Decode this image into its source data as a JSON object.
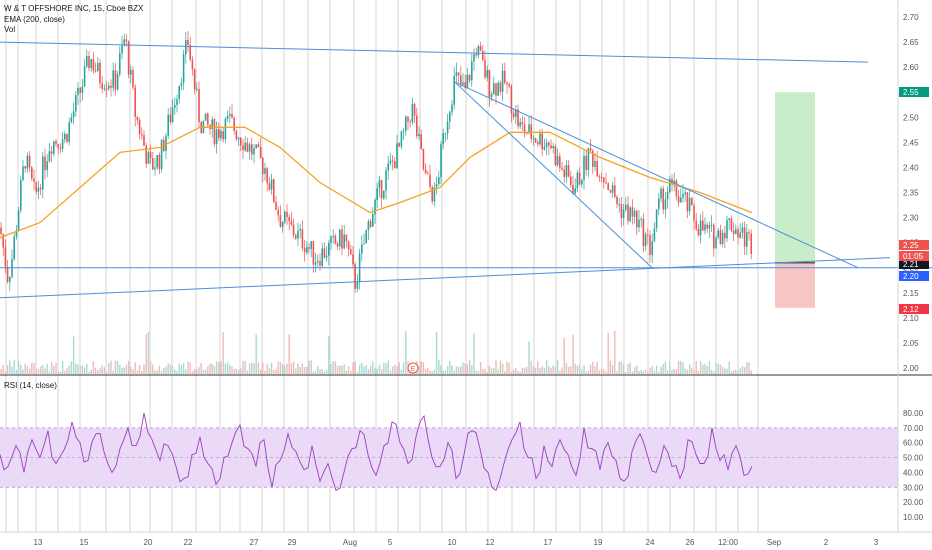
{
  "header": {
    "symbol_line": "W & T OFFSHORE INC, 15, Cboe BZX",
    "indicator_1": "EMA (200, close)",
    "indicator_2": "Vol",
    "rsi_label": "RSI (14, close)",
    "marker_label": "E"
  },
  "price_badges": [
    {
      "text": "2.55",
      "color": "#089981"
    },
    {
      "text": "2.25",
      "color": "#ef5350"
    },
    {
      "text": "2.21",
      "color": "#131722"
    },
    {
      "text": "01:05",
      "color": "#ef5350"
    },
    {
      "text": "2.20",
      "color": "#2962ff"
    },
    {
      "text": "2.12",
      "color": "#f23645"
    }
  ],
  "colors": {
    "up_candle": "#26a69a",
    "down_candle": "#ef5350",
    "ema_line": "#f7a325",
    "trend_line": "#4a90d9",
    "rsi_line": "#9b3dbf",
    "rsi_band": "#ead9f7",
    "target_zone": "#c9edc8",
    "stop_zone": "#f8c5c5"
  },
  "chart_data": [
    {
      "type": "line",
      "panel": "price",
      "series_kind": "candlestick_15min",
      "y_axis": {
        "ticks": [
          "2.70",
          "2.65",
          "2.60",
          "2.55",
          "2.50",
          "2.45",
          "2.40",
          "2.35",
          "2.30",
          "2.25",
          "2.20",
          "2.15",
          "2.10",
          "2.05",
          "2.00"
        ],
        "range": [
          1.97,
          2.72
        ]
      },
      "x_axis": {
        "ticks": [
          "13",
          "15",
          "20",
          "22",
          "27",
          "29",
          "Aug",
          "5",
          "10",
          "12",
          "17",
          "19",
          "24",
          "26",
          "12:00",
          "Sep",
          "2",
          "3"
        ]
      },
      "price_path": [
        {
          "x": 0,
          "y": 2.28
        },
        {
          "x": 8,
          "y": 2.18
        },
        {
          "x": 12,
          "y": 2.22
        },
        {
          "x": 25,
          "y": 2.42
        },
        {
          "x": 35,
          "y": 2.34
        },
        {
          "x": 50,
          "y": 2.45
        },
        {
          "x": 65,
          "y": 2.46
        },
        {
          "x": 80,
          "y": 2.55
        },
        {
          "x": 90,
          "y": 2.62
        },
        {
          "x": 100,
          "y": 2.58
        },
        {
          "x": 115,
          "y": 2.57
        },
        {
          "x": 125,
          "y": 2.66
        },
        {
          "x": 135,
          "y": 2.51
        },
        {
          "x": 150,
          "y": 2.4
        },
        {
          "x": 160,
          "y": 2.42
        },
        {
          "x": 170,
          "y": 2.5
        },
        {
          "x": 180,
          "y": 2.58
        },
        {
          "x": 188,
          "y": 2.65
        },
        {
          "x": 200,
          "y": 2.49
        },
        {
          "x": 215,
          "y": 2.47
        },
        {
          "x": 230,
          "y": 2.49
        },
        {
          "x": 245,
          "y": 2.45
        },
        {
          "x": 265,
          "y": 2.4
        },
        {
          "x": 280,
          "y": 2.3
        },
        {
          "x": 295,
          "y": 2.27
        },
        {
          "x": 305,
          "y": 2.25
        },
        {
          "x": 315,
          "y": 2.22
        },
        {
          "x": 330,
          "y": 2.24
        },
        {
          "x": 345,
          "y": 2.26
        },
        {
          "x": 355,
          "y": 2.17
        },
        {
          "x": 370,
          "y": 2.3
        },
        {
          "x": 385,
          "y": 2.38
        },
        {
          "x": 400,
          "y": 2.44
        },
        {
          "x": 412,
          "y": 2.52
        },
        {
          "x": 425,
          "y": 2.38
        },
        {
          "x": 435,
          "y": 2.34
        },
        {
          "x": 445,
          "y": 2.48
        },
        {
          "x": 455,
          "y": 2.58
        },
        {
          "x": 465,
          "y": 2.55
        },
        {
          "x": 476,
          "y": 2.64
        },
        {
          "x": 490,
          "y": 2.56
        },
        {
          "x": 505,
          "y": 2.57
        },
        {
          "x": 520,
          "y": 2.48
        },
        {
          "x": 535,
          "y": 2.46
        },
        {
          "x": 550,
          "y": 2.45
        },
        {
          "x": 560,
          "y": 2.4
        },
        {
          "x": 575,
          "y": 2.36
        },
        {
          "x": 590,
          "y": 2.43
        },
        {
          "x": 605,
          "y": 2.38
        },
        {
          "x": 620,
          "y": 2.32
        },
        {
          "x": 635,
          "y": 2.3
        },
        {
          "x": 650,
          "y": 2.24
        },
        {
          "x": 660,
          "y": 2.33
        },
        {
          "x": 670,
          "y": 2.36
        },
        {
          "x": 685,
          "y": 2.33
        },
        {
          "x": 700,
          "y": 2.28
        },
        {
          "x": 715,
          "y": 2.26
        },
        {
          "x": 730,
          "y": 2.29
        },
        {
          "x": 745,
          "y": 2.26
        },
        {
          "x": 752,
          "y": 2.25
        }
      ],
      "ema_200_path": [
        {
          "x": 0,
          "y": 2.26
        },
        {
          "x": 40,
          "y": 2.29
        },
        {
          "x": 80,
          "y": 2.36
        },
        {
          "x": 120,
          "y": 2.43
        },
        {
          "x": 160,
          "y": 2.44
        },
        {
          "x": 200,
          "y": 2.48
        },
        {
          "x": 245,
          "y": 2.48
        },
        {
          "x": 280,
          "y": 2.44
        },
        {
          "x": 320,
          "y": 2.37
        },
        {
          "x": 370,
          "y": 2.31
        },
        {
          "x": 400,
          "y": 2.33
        },
        {
          "x": 440,
          "y": 2.36
        },
        {
          "x": 470,
          "y": 2.42
        },
        {
          "x": 510,
          "y": 2.47
        },
        {
          "x": 550,
          "y": 2.47
        },
        {
          "x": 600,
          "y": 2.42
        },
        {
          "x": 650,
          "y": 2.38
        },
        {
          "x": 700,
          "y": 2.35
        },
        {
          "x": 752,
          "y": 2.31
        }
      ],
      "trend_lines": [
        {
          "from": [
            0,
            2.65
          ],
          "to": [
            868,
            2.61
          ]
        },
        {
          "from": [
            0,
            2.14
          ],
          "to": [
            890,
            2.22
          ]
        },
        {
          "from": [
            0,
            2.2
          ],
          "to": [
            932,
            2.2
          ]
        },
        {
          "from": [
            455,
            2.57
          ],
          "to": [
            858,
            2.2
          ]
        },
        {
          "from": [
            455,
            2.57
          ],
          "to": [
            652,
            2.2
          ]
        }
      ],
      "long_position": {
        "entry": 2.21,
        "target": 2.55,
        "stop": 2.12,
        "x_start": 775,
        "x_end": 815
      }
    },
    {
      "type": "line",
      "panel": "rsi",
      "title": "RSI (14, close)",
      "y_axis": {
        "ticks": [
          "80.00",
          "70.00",
          "60.00",
          "50.00",
          "40.00",
          "30.00",
          "20.00",
          "10.00"
        ],
        "range": [
          0,
          88
        ]
      },
      "band": [
        30,
        70
      ],
      "values": [
        52,
        44,
        58,
        40,
        62,
        50,
        68,
        46,
        55,
        74,
        60,
        48,
        66,
        54,
        40,
        56,
        70,
        58,
        80,
        62,
        48,
        58,
        44,
        36,
        52,
        64,
        46,
        32,
        50,
        60,
        72,
        56,
        44,
        62,
        30,
        48,
        66,
        54,
        42,
        58,
        34,
        46,
        28,
        40,
        56,
        68,
        52,
        38,
        58,
        74,
        60,
        46,
        64,
        78,
        50,
        44,
        60,
        36,
        52,
        68,
        56,
        40,
        28,
        46,
        62,
        74,
        50,
        36,
        58,
        44,
        62,
        52,
        38,
        70,
        56,
        42,
        60,
        48,
        34,
        54,
        66,
        50,
        40,
        58,
        44,
        36,
        62,
        52,
        46,
        70,
        48,
        42,
        58,
        38,
        44
      ]
    }
  ]
}
